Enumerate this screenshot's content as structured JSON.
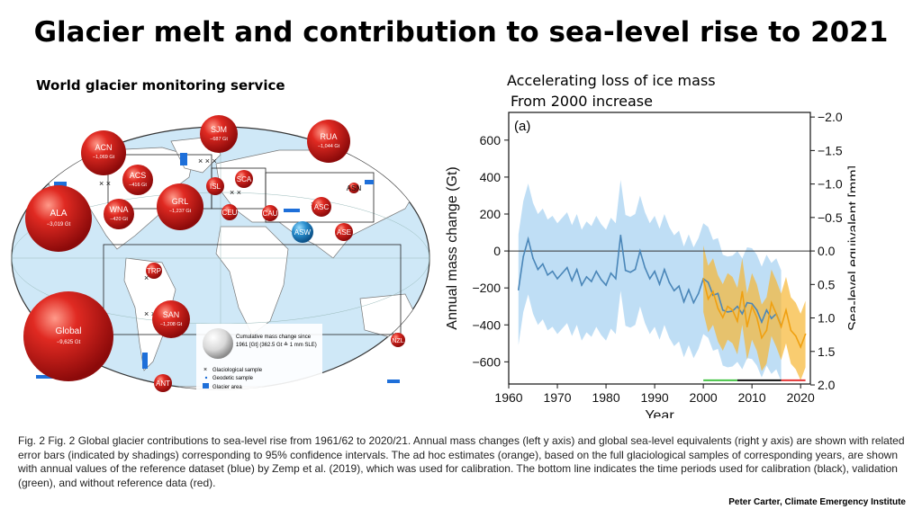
{
  "page": {
    "title": "Glacier melt and contribution to sea-level rise to 2021",
    "map_title": "World glacier monitoring service",
    "chart_title_line1": "Accelerating loss of ice mass",
    "chart_title_line2": "From 2000 increase",
    "caption": "Fig. 2 Fig. 2 Global glacier contributions to sea-level rise from 1961/62 to 2020/21. Annual mass changes (left y axis) and global sea-level equivalents (right y axis) are shown with related error bars (indicated by shadings) corresponding to 95% confidence intervals.  The ad hoc estimates (orange), based on the full glaciological samples of corresponding years, are shown with annual values of the reference dataset (blue) by Zemp et al. (2019), which was used for calibration.  The bottom line indicates the time periods used for calibration (black), validation (green), and without reference data (red).",
    "credit": "Peter Carter, Climate Emergency Institute"
  },
  "map": {
    "regions": [
      {
        "code": "ACN",
        "value": "−1,069 Gt"
      },
      {
        "code": "SJM",
        "value": "−687 Gt"
      },
      {
        "code": "RUA",
        "value": "−1,044 Gt"
      },
      {
        "code": "ACS",
        "value": "−416 Gt"
      },
      {
        "code": "ISL",
        "value": ""
      },
      {
        "code": "SCA",
        "value": ""
      },
      {
        "code": "ASN",
        "value": ""
      },
      {
        "code": "GRL",
        "value": "−1,237 Gt"
      },
      {
        "code": "ALA",
        "value": "−3,019 Gt"
      },
      {
        "code": "WNA",
        "value": "−420 Gt"
      },
      {
        "code": "CEU",
        "value": ""
      },
      {
        "code": "CAU",
        "value": ""
      },
      {
        "code": "ASC",
        "value": ""
      },
      {
        "code": "ASW",
        "value": ""
      },
      {
        "code": "ASE",
        "value": ""
      },
      {
        "code": "TRP",
        "value": ""
      },
      {
        "code": "SAN",
        "value": "−1,208 Gt"
      },
      {
        "code": "Global",
        "value": "−9,625 Gt"
      },
      {
        "code": "NZL",
        "value": ""
      },
      {
        "code": "ANT",
        "value": ""
      }
    ],
    "legend": {
      "cumulative_line1": "Cumulative mass change since",
      "cumulative_line2": "1961 [Gt] (362.5 Gt ≙ 1 mm SLE)",
      "glaciological": "Glaciological sample",
      "geodetic": "Geodetic sample",
      "glacier_area": "Glacier area"
    },
    "colors": {
      "ocean": "#cfe8f7",
      "land": "#ffffff",
      "bubble": "#d81e1e",
      "glacier": "#1e6fd9"
    }
  },
  "chart_data": {
    "type": "line",
    "panel_label": "(a)",
    "xlabel": "Year",
    "ylabel": "Annual mass change (Gt)",
    "y2label": "Sea-level equivalent [mm]",
    "xlim": [
      1960,
      2022
    ],
    "ylim": [
      -720,
      750
    ],
    "xticks": [
      "1960",
      "1970",
      "1980",
      "1990",
      "2000",
      "2010",
      "2020"
    ],
    "yticks": [
      "−600",
      "−400",
      "−200",
      "0",
      "200",
      "400",
      "600"
    ],
    "y2ticks": [
      "−2.0",
      "−1.5",
      "−1.0",
      "−0.5",
      "0.0",
      "0.5",
      "1.0",
      "1.5",
      "2.0"
    ],
    "series": [
      {
        "color": "#4a86b8",
        "band_color": "#a9d3f2",
        "ci_halfwidth": 300,
        "x": [
          1962,
          1963,
          1964,
          1965,
          1966,
          1967,
          1968,
          1969,
          1970,
          1971,
          1972,
          1973,
          1974,
          1975,
          1976,
          1977,
          1978,
          1979,
          1980,
          1981,
          1982,
          1983,
          1984,
          1985,
          1986,
          1987,
          1988,
          1989,
          1990,
          1991,
          1992,
          1993,
          1994,
          1995,
          1996,
          1997,
          1998,
          1999,
          2000,
          2001,
          2002,
          2003,
          2004,
          2005,
          2006,
          2007,
          2008,
          2009,
          2010,
          2011,
          2012,
          2013,
          2014,
          2015,
          2016
        ],
        "values": [
          -210,
          -30,
          65,
          -40,
          -100,
          -70,
          -130,
          -110,
          -150,
          -120,
          -90,
          -160,
          -100,
          -185,
          -140,
          -165,
          -110,
          -155,
          -185,
          -120,
          -150,
          85,
          -105,
          -115,
          -100,
          0,
          -90,
          -150,
          -110,
          -180,
          -100,
          -170,
          -215,
          -190,
          -275,
          -210,
          -280,
          -230,
          -150,
          -170,
          -240,
          -230,
          -320,
          -330,
          -325,
          -300,
          -340,
          -280,
          -285,
          -320,
          -385,
          -320,
          -365,
          -340,
          -405
        ]
      },
      {
        "color": "#f0a010",
        "band_color": "#f7b733",
        "ci_halfwidth": 180,
        "x": [
          2000,
          2001,
          2002,
          2003,
          2004,
          2005,
          2006,
          2007,
          2008,
          2009,
          2010,
          2011,
          2012,
          2013,
          2014,
          2015,
          2016,
          2017,
          2018,
          2019,
          2020,
          2021
        ],
        "values": [
          -150,
          -260,
          -220,
          -310,
          -360,
          -300,
          -320,
          -380,
          -220,
          -410,
          -300,
          -360,
          -470,
          -430,
          -280,
          -340,
          -410,
          -320,
          -430,
          -460,
          -520,
          -450
        ]
      }
    ],
    "period_bar": [
      {
        "from": 2000,
        "to": 2007,
        "color": "#48c448"
      },
      {
        "from": 2007,
        "to": 2016,
        "color": "#111111"
      },
      {
        "from": 2016,
        "to": 2021,
        "color": "#e33636"
      }
    ],
    "grid": false,
    "legend": "none"
  }
}
